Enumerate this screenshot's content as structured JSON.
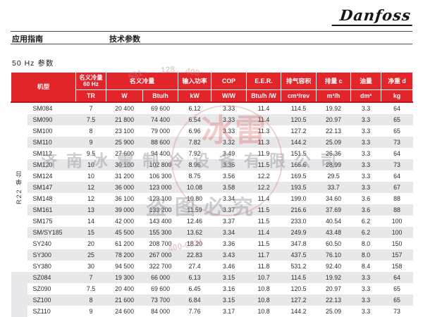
{
  "brand": {
    "logo_text": "Danfoss"
  },
  "page_header": {
    "left_title": "应用指南",
    "center_title": "技术参数"
  },
  "section_title": "50 Hz 参数",
  "colors": {
    "header_red": "#e2242b",
    "header_red_dark": "#b5161f",
    "row_alt": "#e8e8ea"
  },
  "table": {
    "side_group_label": "R22 单台",
    "header": {
      "model": "机型",
      "cap60_title": "名义冷量",
      "cap60_sub": "60 Hz",
      "cap60_unit": "TR",
      "nominal_title": "名义冷量",
      "unit_w": "W",
      "unit_btuh": "Btu/h",
      "power_title": "输入功率",
      "unit_kw": "kW",
      "cop_title": "COP",
      "unit_ww": "W/W",
      "eer_title": "E.E.R.",
      "unit_btuhw": "Btu/h /W",
      "disp_title": "排气容积",
      "unit_cm3rev": "cm³/rev",
      "flow_title": "排量 c",
      "unit_m3h": "m³/h",
      "oil_title": "油量",
      "unit_dm3": "dm³",
      "weight_title": "净重 d",
      "unit_kg": "kg"
    },
    "sz_section_start": 15,
    "rows": [
      {
        "model": "SM084",
        "values": [
          "7",
          "20 400",
          "69 600",
          "6.12",
          "3.33",
          "11.4",
          "114.5",
          "19.92",
          "3.3",
          "64"
        ]
      },
      {
        "model": "SM090",
        "values": [
          "7.5",
          "21 800",
          "74 400",
          "6.54",
          "3.33",
          "11.4",
          "120.5",
          "20.97",
          "3.3",
          "65"
        ]
      },
      {
        "model": "SM100",
        "values": [
          "8",
          "23 100",
          "79 000",
          "6.96",
          "3.33",
          "11.3",
          "127.2",
          "22.13",
          "3.3",
          "65"
        ]
      },
      {
        "model": "SM110",
        "values": [
          "9",
          "25 900",
          "88 600",
          "7.82",
          "3.32",
          "11.3",
          "144.2",
          "25.09",
          "3.3",
          "73"
        ]
      },
      {
        "model": "SM112",
        "values": [
          "9.5",
          "27 600",
          "94 400",
          "7.92",
          "3.49",
          "11.9",
          "151.5",
          "26.36",
          "3.3",
          "64"
        ]
      },
      {
        "model": "SM120",
        "values": [
          "10",
          "30 100",
          "102 800",
          "8.96",
          "3.36",
          "11.5",
          "166.6",
          "28.99",
          "3.3",
          "73"
        ]
      },
      {
        "model": "SM124",
        "values": [
          "10",
          "31 200",
          "106 300",
          "8.75",
          "3.56",
          "12.2",
          "169.5",
          "29.5",
          "3.3",
          "64"
        ]
      },
      {
        "model": "SM147",
        "values": [
          "12",
          "36 000",
          "123 000",
          "10.08",
          "3.58",
          "12.2",
          "193.5",
          "33.7",
          "3.3",
          "67"
        ]
      },
      {
        "model": "SM148",
        "values": [
          "12",
          "36 100",
          "123 100",
          "10.80",
          "3.34",
          "11.4",
          "199.0",
          "34.60",
          "3.6",
          "88"
        ]
      },
      {
        "model": "SM161",
        "values": [
          "13",
          "39 000",
          "133 200",
          "11.59",
          "3.37",
          "11.5",
          "216.6",
          "37.69",
          "3.6",
          "88"
        ]
      },
      {
        "model": "SM175",
        "values": [
          "14",
          "42 000",
          "143 400",
          "12.46",
          "3.37",
          "11.5",
          "233.0",
          "40.54",
          "6.2",
          "100"
        ]
      },
      {
        "model": "SM/SY185",
        "values": [
          "15",
          "45 500",
          "155 300",
          "13.62",
          "3.34",
          "11.4",
          "249.9",
          "43.48",
          "6.2",
          "100"
        ]
      },
      {
        "model": "SY240",
        "values": [
          "20",
          "61 200",
          "208 700",
          "18.20",
          "3.36",
          "11.5",
          "347.8",
          "60.50",
          "8.0",
          "150"
        ]
      },
      {
        "model": "SY300",
        "values": [
          "25",
          "78 200",
          "267 000",
          "22.83",
          "3.43",
          "11.7",
          "437.5",
          "76.10",
          "8.0",
          "157"
        ]
      },
      {
        "model": "SY380",
        "values": [
          "30",
          "94 500",
          "322 700",
          "27.4",
          "3.46",
          "11.8",
          "531.2",
          "92.40",
          "8.4",
          "158"
        ]
      },
      {
        "model": "SZ084",
        "values": [
          "7",
          "19 300",
          "66 000",
          "6.13",
          "3.15",
          "10.7",
          "114.5",
          "19.92",
          "3.3",
          "64"
        ]
      },
      {
        "model": "SZ090",
        "values": [
          "7.5",
          "20 400",
          "69 600",
          "6.45",
          "3.16",
          "10.8",
          "120.5",
          "20.97",
          "3.3",
          "65"
        ]
      },
      {
        "model": "SZ100",
        "values": [
          "8",
          "21 600",
          "73 700",
          "6.84",
          "3.15",
          "10.8",
          "127.2",
          "22.13",
          "3.3",
          "65"
        ]
      },
      {
        "model": "SZ110",
        "values": [
          "9",
          "24 600",
          "84 000",
          "7.76",
          "3.17",
          "10.8",
          "144.2",
          "25.09",
          "3.3",
          "73"
        ]
      }
    ]
  },
  "watermark": {
    "logo_chars": "冰雷",
    "company": "济南冰雷制冷设备有限公司",
    "warning": "盗图必究",
    "num1": "531",
    "num2": "128",
    "num3": "400",
    "num4": "400-0531"
  }
}
